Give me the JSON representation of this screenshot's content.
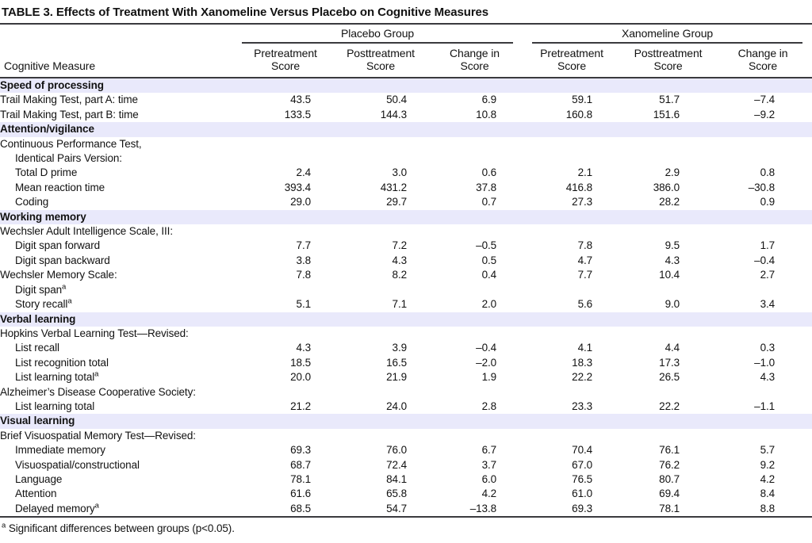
{
  "page": {
    "title": "TABLE 3. Effects of Treatment With Xanomeline Versus Placebo on Cognitive Measures"
  },
  "colors": {
    "background": "#ffffff",
    "text": "#121212",
    "rule": "#3a3a3e",
    "section_band": "#e9e9fb"
  },
  "table": {
    "row_header": "Cognitive Measure",
    "groups": [
      {
        "label": "Placebo Group"
      },
      {
        "label": "Xanomeline Group"
      }
    ],
    "columns": [
      {
        "top": "Pretreatment",
        "bottom": "Score"
      },
      {
        "top": "Posttreatment",
        "bottom": "Score"
      },
      {
        "top": "Change in",
        "bottom": "Score"
      },
      {
        "top": "Pretreatment",
        "bottom": "Score"
      },
      {
        "top": "Posttreatment",
        "bottom": "Score"
      },
      {
        "top": "Change in",
        "bottom": "Score"
      }
    ],
    "rows": [
      {
        "type": "section",
        "label": "Speed of processing"
      },
      {
        "type": "data",
        "indent": 0,
        "label": "Trail Making Test, part A: time",
        "values": [
          "43.5",
          "50.4",
          "6.9",
          "59.1",
          "51.7",
          "–7.4"
        ]
      },
      {
        "type": "data",
        "indent": 0,
        "label": "Trail Making Test, part B: time",
        "values": [
          "133.5",
          "144.3",
          "10.8",
          "160.8",
          "151.6",
          "–9.2"
        ]
      },
      {
        "type": "section",
        "label": "Attention/vigilance"
      },
      {
        "type": "data",
        "indent": 0,
        "label": "Continuous Performance Test,",
        "values": [
          "",
          "",
          "",
          "",
          "",
          ""
        ]
      },
      {
        "type": "data",
        "indent": 1,
        "label": "Identical Pairs Version:",
        "values": [
          "",
          "",
          "",
          "",
          "",
          ""
        ]
      },
      {
        "type": "data",
        "indent": 1,
        "label": "Total D prime",
        "values": [
          "2.4",
          "3.0",
          "0.6",
          "2.1",
          "2.9",
          "0.8"
        ]
      },
      {
        "type": "data",
        "indent": 1,
        "label": "Mean reaction time",
        "values": [
          "393.4",
          "431.2",
          "37.8",
          "416.8",
          "386.0",
          "–30.8"
        ]
      },
      {
        "type": "data",
        "indent": 1,
        "label": "Coding",
        "values": [
          "29.0",
          "29.7",
          "0.7",
          "27.3",
          "28.2",
          "0.9"
        ]
      },
      {
        "type": "section",
        "label": "Working memory"
      },
      {
        "type": "data",
        "indent": 0,
        "label": "Wechsler Adult Intelligence Scale, III:",
        "values": [
          "",
          "",
          "",
          "",
          "",
          ""
        ]
      },
      {
        "type": "data",
        "indent": 1,
        "label": "Digit span forward",
        "values": [
          "7.7",
          "7.2",
          "–0.5",
          "7.8",
          "9.5",
          "1.7"
        ]
      },
      {
        "type": "data",
        "indent": 1,
        "label": "Digit span backward",
        "values": [
          "3.8",
          "4.3",
          "0.5",
          "4.7",
          "4.3",
          "–0.4"
        ]
      },
      {
        "type": "data",
        "indent": 0,
        "label": "Wechsler Memory Scale:",
        "values": [
          "7.8",
          "8.2",
          "0.4",
          "7.7",
          "10.4",
          "2.7"
        ]
      },
      {
        "type": "data",
        "indent": 1,
        "label": "Digit span",
        "sup": "a",
        "values": [
          "",
          "",
          "",
          "",
          "",
          ""
        ]
      },
      {
        "type": "data",
        "indent": 1,
        "label": "Story recall",
        "sup": "a",
        "values": [
          "5.1",
          "7.1",
          "2.0",
          "5.6",
          "9.0",
          "3.4"
        ]
      },
      {
        "type": "section",
        "label": "Verbal learning"
      },
      {
        "type": "data",
        "indent": 0,
        "label": "Hopkins Verbal Learning Test—Revised:",
        "values": [
          "",
          "",
          "",
          "",
          "",
          ""
        ]
      },
      {
        "type": "data",
        "indent": 1,
        "label": "List recall",
        "values": [
          "4.3",
          "3.9",
          "–0.4",
          "4.1",
          "4.4",
          "0.3"
        ]
      },
      {
        "type": "data",
        "indent": 1,
        "label": "List recognition total",
        "values": [
          "18.5",
          "16.5",
          "–2.0",
          "18.3",
          "17.3",
          "–1.0"
        ]
      },
      {
        "type": "data",
        "indent": 1,
        "label": "List learning total",
        "sup": "a",
        "values": [
          "20.0",
          "21.9",
          "1.9",
          "22.2",
          "26.5",
          "4.3"
        ]
      },
      {
        "type": "data",
        "indent": 0,
        "label": "Alzheimer’s Disease Cooperative Society:",
        "values": [
          "",
          "",
          "",
          "",
          "",
          ""
        ]
      },
      {
        "type": "data",
        "indent": 1,
        "label": "List learning total",
        "values": [
          "21.2",
          "24.0",
          "2.8",
          "23.3",
          "22.2",
          "–1.1"
        ]
      },
      {
        "type": "section",
        "label": "Visual learning"
      },
      {
        "type": "data",
        "indent": 0,
        "label": "Brief Visuospatial Memory Test—Revised:",
        "values": [
          "",
          "",
          "",
          "",
          "",
          ""
        ]
      },
      {
        "type": "data",
        "indent": 1,
        "label": "Immediate memory",
        "values": [
          "69.3",
          "76.0",
          "6.7",
          "70.4",
          "76.1",
          "5.7"
        ]
      },
      {
        "type": "data",
        "indent": 1,
        "label": "Visuospatial/constructional",
        "values": [
          "68.7",
          "72.4",
          "3.7",
          "67.0",
          "76.2",
          "9.2"
        ]
      },
      {
        "type": "data",
        "indent": 1,
        "label": "Language",
        "values": [
          "78.1",
          "84.1",
          "6.0",
          "76.5",
          "80.7",
          "4.2"
        ]
      },
      {
        "type": "data",
        "indent": 1,
        "label": "Attention",
        "values": [
          "61.6",
          "65.8",
          "4.2",
          "61.0",
          "69.4",
          "8.4"
        ]
      },
      {
        "type": "data",
        "indent": 1,
        "label": "Delayed memory",
        "sup": "a",
        "values": [
          "68.5",
          "54.7",
          "–13.8",
          "69.3",
          "78.1",
          "8.8"
        ]
      }
    ]
  },
  "footnote": {
    "marker": "a",
    "text": "Significant differences between groups (p<0.05)."
  }
}
